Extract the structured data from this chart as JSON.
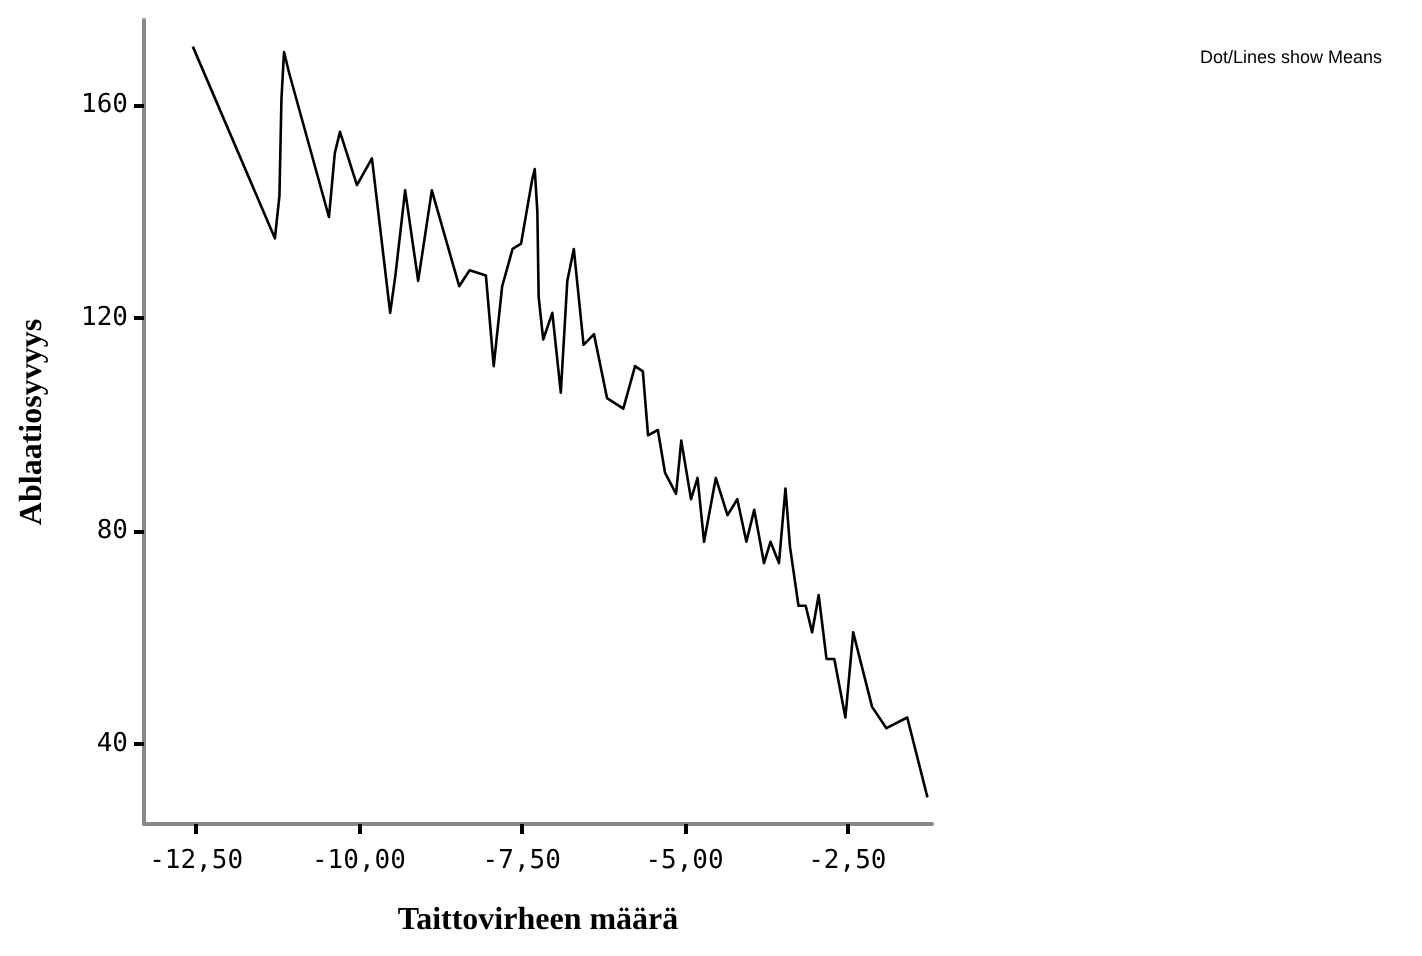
{
  "chart_data": {
    "type": "line",
    "xlabel": "Taittovirheen määrä",
    "ylabel": "Ablaatiosyvyys",
    "annotations": [
      "Dot/Lines show Means"
    ],
    "x": [
      -12.55,
      -11.29,
      -11.22,
      -11.19,
      -11.15,
      -11.07,
      -10.46,
      -10.37,
      -10.29,
      -10.03,
      -9.8,
      -9.52,
      -9.44,
      -9.29,
      -9.09,
      -8.88,
      -8.46,
      -8.3,
      -8.05,
      -7.93,
      -7.8,
      -7.64,
      -7.51,
      -7.34,
      -7.3,
      -7.26,
      -7.24,
      -7.17,
      -7.03,
      -6.9,
      -6.8,
      -6.7,
      -6.55,
      -6.39,
      -6.19,
      -5.94,
      -5.76,
      -5.64,
      -5.56,
      -5.41,
      -5.3,
      -5.13,
      -5.05,
      -4.9,
      -4.8,
      -4.7,
      -4.52,
      -4.34,
      -4.19,
      -4.05,
      -3.93,
      -3.78,
      -3.68,
      -3.55,
      -3.45,
      -3.38,
      -3.25,
      -3.14,
      -3.04,
      -2.94,
      -2.82,
      -2.7,
      -2.53,
      -2.41,
      -2.12,
      -1.9,
      -1.58,
      -1.27
    ],
    "series": [
      {
        "color": "#000000",
        "values": [
          171,
          135,
          143,
          161,
          170,
          166,
          139,
          151,
          155,
          145,
          150,
          121,
          128,
          144,
          127,
          144,
          126,
          129,
          128,
          111,
          126,
          133,
          134,
          146,
          148,
          140,
          124,
          116,
          121,
          106,
          127,
          133,
          115,
          117,
          105,
          103,
          111,
          110,
          98,
          99,
          91,
          87,
          97,
          86,
          90,
          78,
          90,
          83,
          86,
          78,
          84,
          74,
          78,
          74,
          88,
          77,
          66,
          66,
          61,
          68,
          56,
          56,
          45,
          61,
          47,
          43,
          45,
          30
        ]
      }
    ],
    "xlim": [
      -13.3,
      -1.2
    ],
    "ylim": [
      25,
      176
    ],
    "xticks": [
      {
        "value": -12.5,
        "label": "-12,50"
      },
      {
        "value": -10,
        "label": "-10,00"
      },
      {
        "value": -7.5,
        "label": "-7,50"
      },
      {
        "value": -5,
        "label": "-5,00"
      },
      {
        "value": -2.5,
        "label": "-2,50"
      }
    ],
    "yticks": [
      40,
      80,
      120,
      160
    ],
    "grid": false,
    "marker": "none",
    "line_style": "solid"
  }
}
